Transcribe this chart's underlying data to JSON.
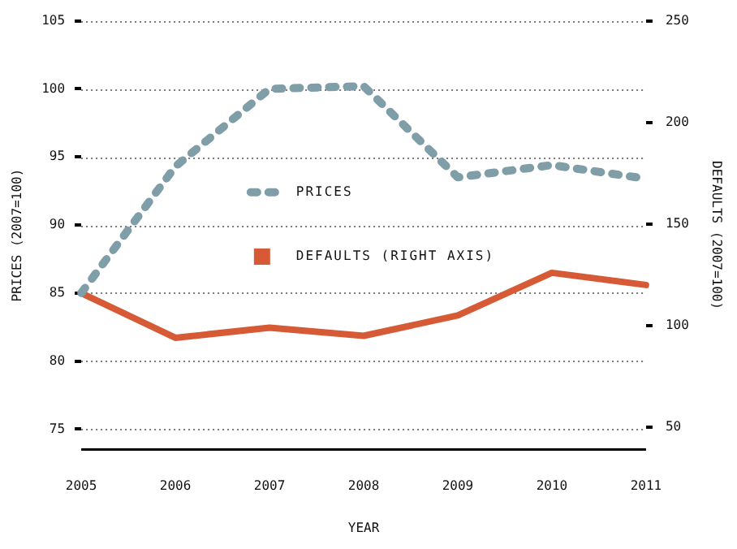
{
  "chart_data": {
    "type": "line",
    "xlabel": "YEAR",
    "ylabel": "PRICES (2007=100)",
    "y2label": "DEFAULTS (2007=100)",
    "categories": [
      "2005",
      "2006",
      "2007",
      "2008",
      "2009",
      "2010",
      "2011"
    ],
    "series": [
      {
        "name": "PRICES",
        "color": "#7f9ea8",
        "values": [
          85,
          94.3,
          100,
          100.2,
          93.5,
          94.4,
          93.4
        ],
        "line_style": "dotted"
      },
      {
        "name": "DEFAULTS (RIGHT AXIS)",
        "color": "#d65a35",
        "values": [
          116,
          94,
          99,
          95,
          105,
          126,
          120
        ],
        "axis": "y2",
        "line_style": "solid"
      }
    ],
    "ylim": [
      73.5,
      105
    ],
    "yticks": [
      75,
      80,
      85,
      90,
      95,
      100,
      105
    ],
    "y2lim": [
      39,
      250
    ],
    "y2ticks": [
      50,
      100,
      150,
      200,
      250
    ],
    "grid": "y",
    "legend": "center",
    "marker": "none"
  }
}
